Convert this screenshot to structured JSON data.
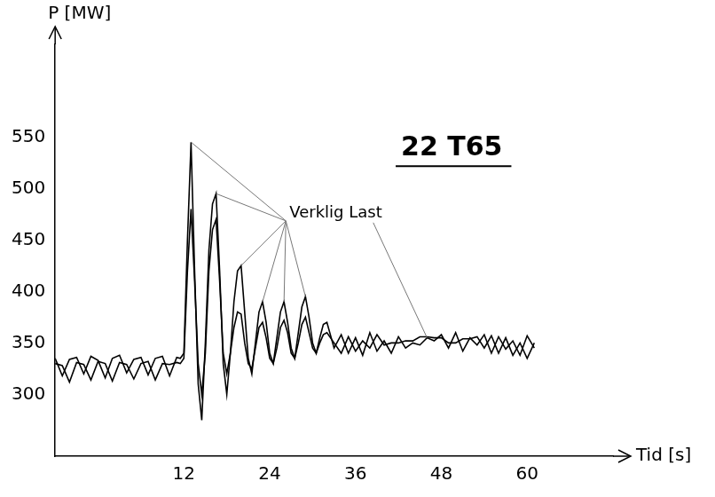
{
  "chart_data": {
    "type": "line",
    "title": "22 T65",
    "annotations": [
      "Verklig Last"
    ],
    "x_label": "Tid [s]",
    "y_label": "P [MW]",
    "x": [
      -6,
      -5,
      -4,
      -3,
      -2,
      -1,
      0,
      1,
      2,
      3,
      4,
      5,
      6,
      7,
      8,
      9,
      10,
      11,
      11.5,
      12,
      12.5,
      13,
      13.5,
      14,
      14.5,
      15,
      15.5,
      16,
      16.5,
      17,
      17.5,
      18,
      18.5,
      19,
      19.5,
      20,
      20.5,
      21,
      21.5,
      22,
      22.5,
      23,
      23.5,
      24,
      24.5,
      25,
      25.5,
      26,
      26.5,
      27,
      27.5,
      28,
      28.5,
      29,
      29.5,
      30,
      30.5,
      31,
      31.5,
      32,
      33,
      34,
      35,
      36,
      37,
      38,
      39,
      40,
      41,
      42,
      43,
      44,
      45,
      46,
      47,
      48,
      49,
      50,
      51,
      52,
      53,
      54,
      55,
      56,
      57,
      58,
      59,
      60,
      61
    ],
    "series": [
      {
        "color": "#000000",
        "values": [
          335,
          318,
          334,
          336,
          320,
          337,
          333,
          316,
          335,
          338,
          321,
          334,
          336,
          319,
          335,
          337,
          318,
          336,
          335,
          340,
          450,
          545,
          420,
          310,
          275,
          350,
          440,
          485,
          495,
          420,
          330,
          300,
          340,
          390,
          420,
          425,
          380,
          335,
          320,
          350,
          380,
          390,
          370,
          340,
          330,
          355,
          380,
          390,
          370,
          345,
          335,
          360,
          385,
          395,
          375,
          350,
          340,
          355,
          368,
          370,
          345,
          358,
          340,
          355,
          338,
          360,
          342,
          352,
          340,
          356,
          345,
          350,
          348,
          355,
          352,
          358,
          345,
          360,
          342,
          355,
          348,
          358,
          340,
          356,
          344,
          352,
          338,
          357,
          345
        ]
      },
      {
        "color": "#000000",
        "values": [
          330,
          328,
          312,
          331,
          329,
          314,
          332,
          330,
          313,
          331,
          329,
          315,
          330,
          332,
          314,
          330,
          329,
          331,
          330,
          335,
          420,
          480,
          410,
          330,
          300,
          340,
          420,
          460,
          470,
          410,
          340,
          320,
          340,
          365,
          380,
          378,
          350,
          330,
          325,
          345,
          365,
          370,
          355,
          335,
          330,
          345,
          365,
          372,
          360,
          340,
          335,
          350,
          368,
          375,
          360,
          345,
          340,
          350,
          358,
          360,
          350,
          340,
          356,
          342,
          352,
          345,
          358,
          348,
          350,
          350,
          352,
          352,
          356,
          356,
          355,
          355,
          350,
          350,
          354,
          354,
          356,
          345,
          357,
          340,
          355,
          338,
          350,
          335,
          350
        ]
      }
    ],
    "xlim": [
      -6,
      72
    ],
    "xticks": [
      12,
      24,
      36,
      48,
      60
    ],
    "ylim": [
      240,
      640
    ],
    "yticks": [
      300,
      350,
      400,
      450,
      500,
      550
    ],
    "grid": false,
    "line_style": "solid",
    "marker": "none"
  }
}
